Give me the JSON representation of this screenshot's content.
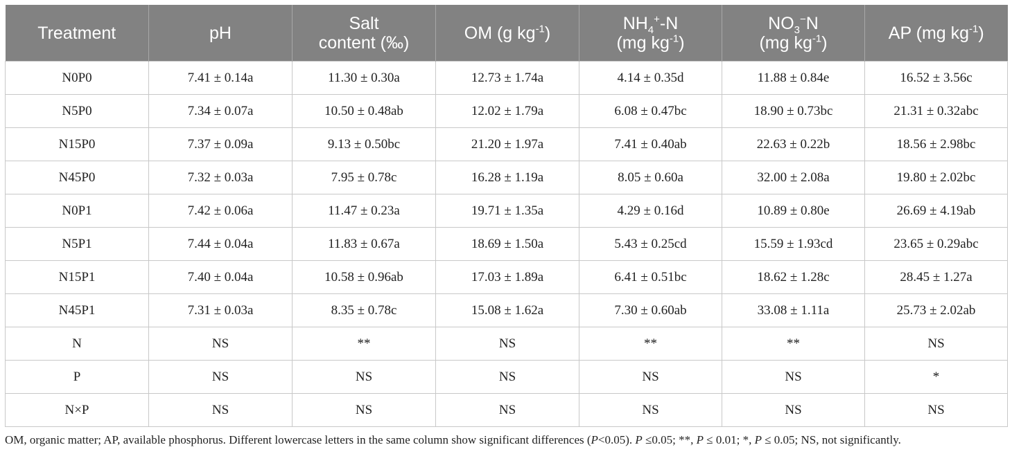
{
  "header": {
    "treatment": "Treatment",
    "ph": "pH",
    "salt_line1": "Salt",
    "salt_line2": "content (‰)",
    "om_prefix": "OM (g kg",
    "om_sup": "-1",
    "om_suffix": ")",
    "nh4_a": "NH",
    "nh4_sub": "4",
    "nh4_sup": "+",
    "nh4_b": "-N",
    "no3_a": "NO",
    "no3_sub": "3",
    "no3_sup": "−",
    "no3_b": "N",
    "unit_prefix": "(mg kg",
    "unit_sup": "-1",
    "unit_suffix": ")",
    "ap_prefix": "AP (mg kg",
    "ap_sup": "-1",
    "ap_suffix": ")"
  },
  "rows": [
    [
      "N0P0",
      "7.41 ± 0.14a",
      "11.30 ± 0.30a",
      "12.73 ± 1.74a",
      "4.14 ± 0.35d",
      "11.88 ± 0.84e",
      "16.52 ± 3.56c"
    ],
    [
      "N5P0",
      "7.34 ± 0.07a",
      "10.50 ± 0.48ab",
      "12.02 ± 1.79a",
      "6.08 ± 0.47bc",
      "18.90 ± 0.73bc",
      "21.31 ± 0.32abc"
    ],
    [
      "N15P0",
      "7.37 ± 0.09a",
      "9.13 ± 0.50bc",
      "21.20 ± 1.97a",
      "7.41 ± 0.40ab",
      "22.63 ± 0.22b",
      "18.56 ± 2.98bc"
    ],
    [
      "N45P0",
      "7.32 ± 0.03a",
      "7.95 ± 0.78c",
      "16.28 ± 1.19a",
      "8.05 ± 0.60a",
      "32.00 ± 2.08a",
      "19.80 ± 2.02bc"
    ],
    [
      "N0P1",
      "7.42 ± 0.06a",
      "11.47 ± 0.23a",
      "19.71 ± 1.35a",
      "4.29 ± 0.16d",
      "10.89 ± 0.80e",
      "26.69 ± 4.19ab"
    ],
    [
      "N5P1",
      "7.44 ± 0.04a",
      "11.83 ± 0.67a",
      "18.69 ± 1.50a",
      "5.43 ± 0.25cd",
      "15.59 ± 1.93cd",
      "23.65 ± 0.29abc"
    ],
    [
      "N15P1",
      "7.40 ± 0.04a",
      "10.58 ± 0.96ab",
      "17.03 ± 1.89a",
      "6.41 ± 0.51bc",
      "18.62 ± 1.28c",
      "28.45 ± 1.27a"
    ],
    [
      "N45P1",
      "7.31 ± 0.03a",
      "8.35 ± 0.78c",
      "15.08 ± 1.62a",
      "7.30 ± 0.60ab",
      "33.08 ± 1.11a",
      "25.73 ± 2.02ab"
    ],
    [
      "N",
      "NS",
      "**",
      "NS",
      "**",
      "**",
      "NS"
    ],
    [
      "P",
      "NS",
      "NS",
      "NS",
      "NS",
      "NS",
      "*"
    ],
    [
      "N×P",
      "NS",
      "NS",
      "NS",
      "NS",
      "NS",
      "NS"
    ]
  ],
  "footnote": {
    "text_1": "OM, organic matter; AP, available phosphorus. Different lowercase letters in the same column show significant differences (",
    "p1": "P",
    "text_2": "<0.05). ",
    "p2": "P",
    "text_3": " ≤0.05; **, ",
    "p3": "P",
    "text_4": " ≤ 0.01; *, ",
    "p4": "P",
    "text_5": " ≤ 0.05; NS, not significantly."
  }
}
